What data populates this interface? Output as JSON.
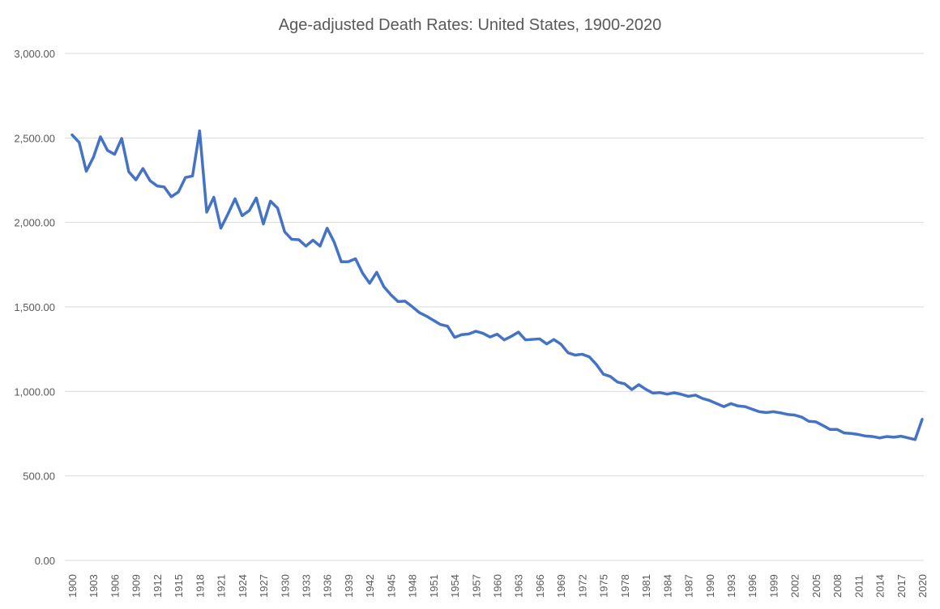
{
  "chart_data": {
    "type": "line",
    "title": "Age-adjusted Death Rates: United States, 1900-2020",
    "xlabel": "",
    "ylabel": "",
    "ylim": [
      0,
      3000
    ],
    "yticks": [
      0,
      500,
      1000,
      1500,
      2000,
      2500,
      3000
    ],
    "ytick_labels": [
      "0.00",
      "500.00",
      "1,000.00",
      "1,500.00",
      "2,000.00",
      "2,500.00",
      "3,000.00"
    ],
    "x_tick_labels": [
      "1900",
      "1903",
      "1906",
      "1909",
      "1912",
      "1915",
      "1918",
      "1921",
      "1924",
      "1927",
      "1930",
      "1933",
      "1936",
      "1939",
      "1942",
      "1945",
      "1948",
      "1951",
      "1954",
      "1957",
      "1960",
      "1963",
      "1966",
      "1969",
      "1972",
      "1975",
      "1978",
      "1981",
      "1984",
      "1987",
      "1990",
      "1993",
      "1996",
      "1999",
      "2002",
      "2005",
      "2008",
      "2011",
      "2014",
      "2017",
      "2020"
    ],
    "grid": true,
    "line_color": "#4472c4",
    "series": [
      {
        "name": "Age-adjusted death rate",
        "x_start": 1900,
        "values": [
          2518,
          2473,
          2303,
          2385,
          2507,
          2426,
          2403,
          2497,
          2300,
          2252,
          2319,
          2247,
          2216,
          2210,
          2152,
          2180,
          2266,
          2275,
          2542,
          2061,
          2149,
          1966,
          2050,
          2140,
          2040,
          2070,
          2145,
          1991,
          2126,
          2085,
          1945,
          1900,
          1898,
          1860,
          1895,
          1860,
          1966,
          1883,
          1767,
          1768,
          1785,
          1700,
          1640,
          1705,
          1620,
          1572,
          1532,
          1534,
          1502,
          1467,
          1446,
          1421,
          1396,
          1386,
          1320,
          1336,
          1340,
          1356,
          1344,
          1322,
          1339,
          1305,
          1326,
          1351,
          1305,
          1308,
          1311,
          1281,
          1307,
          1280,
          1229,
          1215,
          1220,
          1205,
          1160,
          1102,
          1088,
          1055,
          1045,
          1011,
          1040,
          1012,
          990,
          993,
          984,
          992,
          983,
          971,
          978,
          958,
          946,
          928,
          910,
          928,
          914,
          910,
          895,
          880,
          875,
          880,
          873,
          864,
          860,
          848,
          823,
          820,
          798,
          775,
          775,
          754,
          751,
          745,
          736,
          733,
          725,
          733,
          729,
          735,
          725,
          715,
          835
        ]
      }
    ]
  }
}
